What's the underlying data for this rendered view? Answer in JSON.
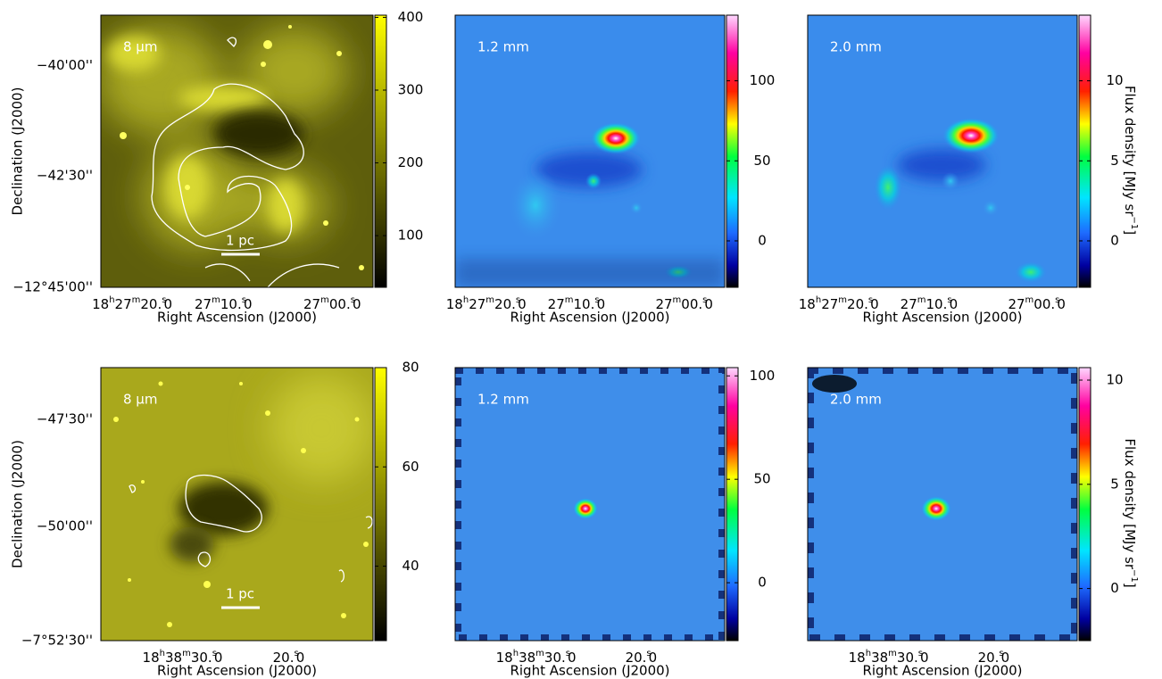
{
  "figure": {
    "y_axis_label": "Declination (J2000)",
    "x_axis_label": "Right Ascension (J2000)",
    "scale_bar": "1 pc",
    "colorbar_label": {
      "text": "Flux density [MJy sr",
      "sup": "−1",
      "end": "]"
    },
    "rows": [
      {
        "dec_ticks": [
          "−40'00''",
          "−42'30''",
          "−12°45'00''"
        ],
        "ra_ticks": [
          [
            "18",
            "h",
            "27",
            "m",
            "20.",
            "s",
            "0"
          ],
          [
            "27",
            "m",
            "10.",
            "s",
            "0"
          ],
          [
            "27",
            "m",
            "00.",
            "s",
            "0"
          ]
        ],
        "panels": [
          {
            "label": "8 μm",
            "colorbar": {
              "lim": [
                29,
                403
              ],
              "ticks": [
                100,
                200,
                300,
                400
              ]
            }
          },
          {
            "label": "1.2 mm",
            "colorbar": {
              "lim": [
                -29,
                141
              ],
              "ticks": [
                0,
                50,
                100
              ]
            }
          },
          {
            "label": "2.0 mm",
            "colorbar": {
              "lim": [
                -2.9,
                14.1
              ],
              "ticks": [
                0,
                5,
                10
              ]
            }
          }
        ]
      },
      {
        "dec_ticks": [
          "−47'30''",
          "−50'00''",
          "−7°52'30''"
        ],
        "ra_ticks": [
          [
            "18",
            "h",
            "38",
            "m",
            "30.",
            "s",
            "0"
          ],
          [
            "20.",
            "s",
            "0"
          ]
        ],
        "panels": [
          {
            "label": "8 μm",
            "colorbar": {
              "lim": [
                25,
                80
              ],
              "ticks": [
                40,
                60,
                80
              ]
            }
          },
          {
            "label": "1.2 mm",
            "colorbar": {
              "lim": [
                -28,
                104
              ],
              "ticks": [
                0,
                50,
                100
              ]
            }
          },
          {
            "label": "2.0 mm",
            "colorbar": {
              "lim": [
                -2.5,
                10.6
              ],
              "ticks": [
                0,
                5,
                10
              ]
            }
          }
        ]
      }
    ]
  }
}
